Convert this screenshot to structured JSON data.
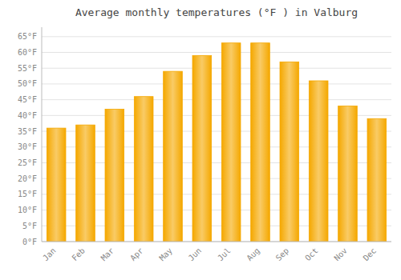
{
  "chart_data": {
    "type": "bar",
    "title": "Average monthly temperatures (°F ) in Valburg",
    "categories": [
      "Jan",
      "Feb",
      "Mar",
      "Apr",
      "May",
      "Jun",
      "Jul",
      "Aug",
      "Sep",
      "Oct",
      "Nov",
      "Dec"
    ],
    "values": [
      36,
      37,
      42,
      46,
      54,
      59,
      63,
      63,
      57,
      51,
      43,
      39
    ],
    "color": "#F5A800",
    "ylim": [
      0,
      68
    ],
    "yticks": [
      {
        "value": 0,
        "label": "0°F"
      },
      {
        "value": 5,
        "label": "5°F"
      },
      {
        "value": 10,
        "label": "10°F"
      },
      {
        "value": 15,
        "label": "15°F"
      },
      {
        "value": 20,
        "label": "20°F"
      },
      {
        "value": 25,
        "label": "25°F"
      },
      {
        "value": 30,
        "label": "30°F"
      },
      {
        "value": 35,
        "label": "35°F"
      },
      {
        "value": 40,
        "label": "40°F"
      },
      {
        "value": 45,
        "label": "45°F"
      },
      {
        "value": 50,
        "label": "50°F"
      },
      {
        "value": 55,
        "label": "55°F"
      },
      {
        "value": 60,
        "label": "60°F"
      },
      {
        "value": 65,
        "label": "65°F"
      }
    ],
    "grid": true
  }
}
